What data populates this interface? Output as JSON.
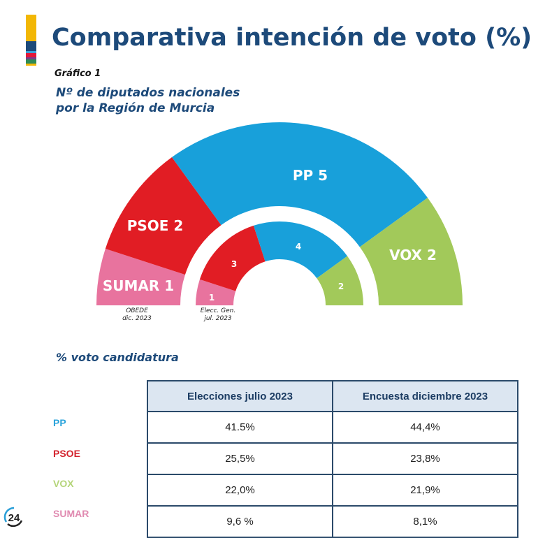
{
  "header": {
    "title": "Comparativa intención de voto (%)",
    "logo_colors": [
      "#f2b705",
      "#1d4a7a",
      "#e2183a",
      "#2e8b57"
    ]
  },
  "chart_data": {
    "type": "pie",
    "subtype": "hemicycle-double",
    "figure_label": "Gráfico 1",
    "title": "Nº de diputados nacionales por la Región de Murcia",
    "title_lines": [
      "Nº de diputados nacionales",
      "por la Región de Murcia"
    ],
    "rings": [
      {
        "name": "OBEDE dic. 2023",
        "source_lines": [
          "OBEDE",
          "dic. 2023"
        ],
        "segments": [
          {
            "party": "SUMAR",
            "seats": 1,
            "label": "SUMAR 1",
            "color": "#e8739e"
          },
          {
            "party": "PSOE",
            "seats": 2,
            "label": "PSOE 2",
            "color": "#e11d24"
          },
          {
            "party": "PP",
            "seats": 5,
            "label": "PP 5",
            "color": "#18a0da"
          },
          {
            "party": "VOX",
            "seats": 2,
            "label": "VOX 2",
            "color": "#a2c95a"
          }
        ]
      },
      {
        "name": "Elecc. Gen. jul. 2023",
        "source_lines": [
          "Elecc. Gen.",
          "jul. 2023"
        ],
        "segments": [
          {
            "party": "SUMAR",
            "seats": 1,
            "label": "1",
            "color": "#e8739e"
          },
          {
            "party": "PSOE",
            "seats": 3,
            "label": "3",
            "color": "#e11d24"
          },
          {
            "party": "PP",
            "seats": 4,
            "label": "4",
            "color": "#18a0da"
          },
          {
            "party": "VOX",
            "seats": 2,
            "label": "2",
            "color": "#a2c95a"
          }
        ]
      }
    ]
  },
  "table": {
    "title": "% voto candidatura",
    "columns": [
      "Elecciones julio 2023",
      "Encuesta diciembre 2023"
    ],
    "rows": [
      {
        "party": "PP",
        "color": "#29a3db",
        "values": [
          "41.5%",
          "44,4%"
        ]
      },
      {
        "party": "PSOE",
        "color": "#d3222d",
        "values": [
          "25,5%",
          "23,8%"
        ]
      },
      {
        "party": "VOX",
        "color": "#b5d57a",
        "values": [
          "22,0%",
          "21,9%"
        ]
      },
      {
        "party": "SUMAR",
        "color": "#e08ab0",
        "values": [
          "9,6 %",
          "8,1%"
        ]
      }
    ]
  },
  "watermark": {
    "text": "24"
  }
}
